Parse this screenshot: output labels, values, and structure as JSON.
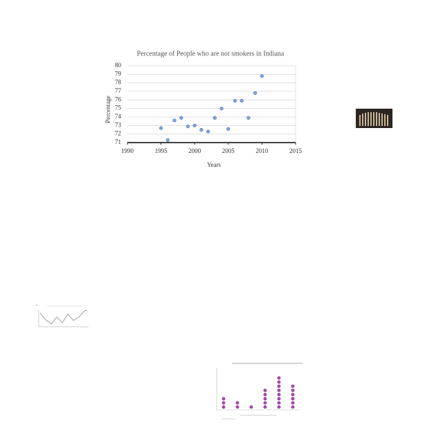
{
  "chart_data": {
    "type": "scatter",
    "title": "Percentage of People who are not smokers in Indiana",
    "x_label": "Years",
    "y_label": "Percentage",
    "x": [
      1995,
      1996,
      1997,
      1998,
      1999,
      2000,
      2001,
      2002,
      2003,
      2004,
      2005,
      2006,
      2007,
      2008,
      2009,
      2010
    ],
    "values": [
      72.7,
      71.3,
      73.6,
      73.9,
      72.9,
      73.0,
      72.5,
      72.3,
      73.9,
      75.0,
      72.6,
      75.9,
      75.9,
      73.9,
      76.8,
      78.8
    ],
    "color": "#7ea6da",
    "xlim": [
      1990,
      2015
    ],
    "xticks": [
      1990,
      1995,
      2000,
      2005,
      2010,
      2015
    ],
    "ylim": [
      71,
      80
    ],
    "yticks": [
      71,
      72,
      73,
      74,
      75,
      76,
      77,
      78,
      79,
      80
    ],
    "grid": true
  }
}
